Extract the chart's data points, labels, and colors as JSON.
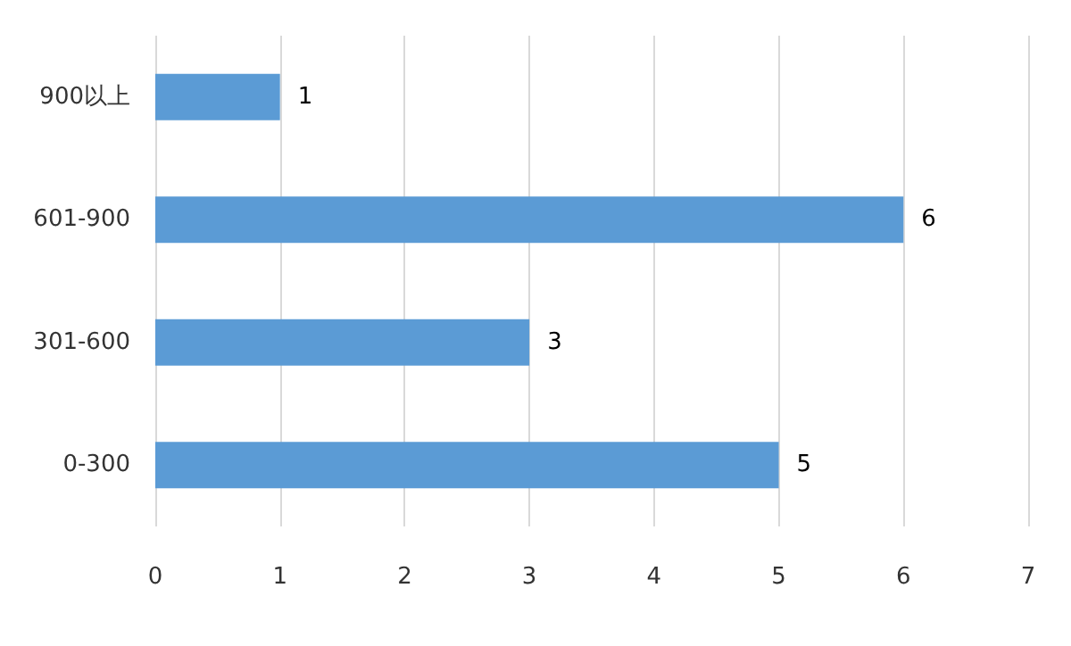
{
  "chart_data": {
    "type": "bar",
    "orientation": "horizontal",
    "categories": [
      "900以上",
      "601-900",
      "301-600",
      "0-300"
    ],
    "values": [
      1,
      6,
      3,
      5
    ],
    "color": "#5b9bd5",
    "xlim": [
      0,
      7
    ],
    "xticks": [
      0,
      1,
      2,
      3,
      4,
      5,
      6,
      7
    ],
    "grid": "x",
    "data_labels": true
  }
}
